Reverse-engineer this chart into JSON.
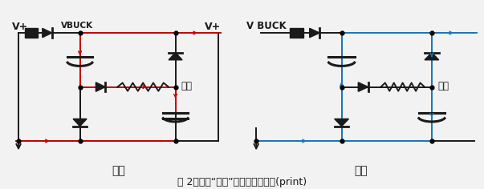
{
  "bg_color": "#f2f2f2",
  "line_color_black": "#1a1a1a",
  "line_color_red": "#cc0000",
  "line_color_blue": "#1a7abf",
  "title": "图 2、双级“填谷”电路工作原理。(print)",
  "label_charge": "充电",
  "label_discharge": "放电",
  "label_vbuck1": "VBUCK",
  "label_vbuck2": "V BUCK",
  "label_vplus1_left": "V+",
  "label_vplus1_right": "V+",
  "label_load1": "负载",
  "label_load2": "负载",
  "title_fontsize": 9,
  "label_fontsize": 10,
  "sub_fontsize": 8
}
